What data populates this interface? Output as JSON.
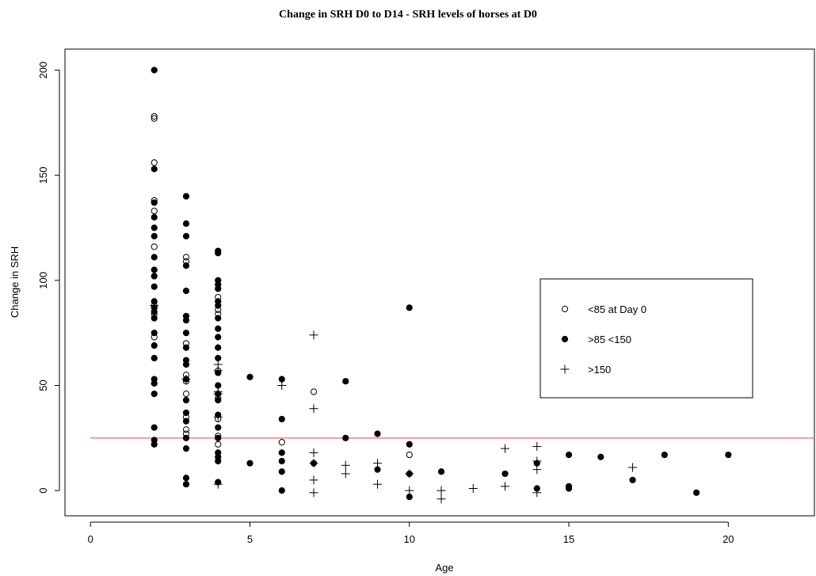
{
  "chart_data": {
    "type": "scatter",
    "title": "Change in SRH D0 to D14 - SRH levels of horses at D0",
    "xlabel": "Age",
    "ylabel": "Change in SRH",
    "xlim": [
      -0.8,
      22.7
    ],
    "ylim": [
      -12,
      210
    ],
    "xticks": [
      0,
      5,
      10,
      15,
      20
    ],
    "yticks": [
      0,
      50,
      100,
      150,
      200
    ],
    "grid": false,
    "legend_position": "right",
    "reference_line": {
      "y": 25,
      "color": "#f08080"
    },
    "series": [
      {
        "name": "<85 at Day 0",
        "marker": "open-circle",
        "points": [
          [
            2,
            178
          ],
          [
            2,
            177
          ],
          [
            2,
            156
          ],
          [
            2,
            138
          ],
          [
            2,
            133
          ],
          [
            2,
            116
          ],
          [
            2,
            88
          ],
          [
            2,
            84
          ],
          [
            2,
            73
          ],
          [
            3,
            111
          ],
          [
            3,
            109
          ],
          [
            3,
            70
          ],
          [
            3,
            55
          ],
          [
            3,
            52
          ],
          [
            3,
            46
          ],
          [
            3,
            35
          ],
          [
            3,
            29
          ],
          [
            3,
            27
          ],
          [
            4,
            92
          ],
          [
            4,
            86
          ],
          [
            4,
            84
          ],
          [
            4,
            57
          ],
          [
            4,
            44
          ],
          [
            4,
            34
          ],
          [
            4,
            26
          ],
          [
            4,
            22
          ],
          [
            6,
            23
          ],
          [
            7,
            47
          ],
          [
            10,
            17
          ]
        ]
      },
      {
        "name": ">85 <150",
        "marker": "filled-circle",
        "points": [
          [
            2,
            200
          ],
          [
            2,
            153
          ],
          [
            2,
            137
          ],
          [
            2,
            130
          ],
          [
            2,
            125
          ],
          [
            2,
            121
          ],
          [
            2,
            111
          ],
          [
            2,
            105
          ],
          [
            2,
            102
          ],
          [
            2,
            97
          ],
          [
            2,
            90
          ],
          [
            2,
            87
          ],
          [
            2,
            85
          ],
          [
            2,
            82
          ],
          [
            2,
            75
          ],
          [
            2,
            69
          ],
          [
            2,
            63
          ],
          [
            2,
            53
          ],
          [
            2,
            51
          ],
          [
            2,
            46
          ],
          [
            2,
            30
          ],
          [
            2,
            24
          ],
          [
            2,
            22
          ],
          [
            3,
            140
          ],
          [
            3,
            127
          ],
          [
            3,
            121
          ],
          [
            3,
            107
          ],
          [
            3,
            95
          ],
          [
            3,
            83
          ],
          [
            3,
            81
          ],
          [
            3,
            75
          ],
          [
            3,
            68
          ],
          [
            3,
            62
          ],
          [
            3,
            60
          ],
          [
            3,
            53
          ],
          [
            3,
            43
          ],
          [
            3,
            37
          ],
          [
            3,
            33
          ],
          [
            3,
            25
          ],
          [
            3,
            20
          ],
          [
            3,
            6
          ],
          [
            3,
            3
          ],
          [
            4,
            114
          ],
          [
            4,
            113
          ],
          [
            4,
            100
          ],
          [
            4,
            98
          ],
          [
            4,
            96
          ],
          [
            4,
            90
          ],
          [
            4,
            88
          ],
          [
            4,
            82
          ],
          [
            4,
            77
          ],
          [
            4,
            73
          ],
          [
            4,
            68
          ],
          [
            4,
            63
          ],
          [
            4,
            56
          ],
          [
            4,
            50
          ],
          [
            4,
            46
          ],
          [
            4,
            43
          ],
          [
            4,
            36
          ],
          [
            4,
            30
          ],
          [
            4,
            25
          ],
          [
            4,
            18
          ],
          [
            4,
            16
          ],
          [
            4,
            14
          ],
          [
            4,
            4
          ],
          [
            5,
            54
          ],
          [
            5,
            13
          ],
          [
            6,
            53
          ],
          [
            6,
            34
          ],
          [
            6,
            18
          ],
          [
            6,
            14
          ],
          [
            6,
            9
          ],
          [
            6,
            0
          ],
          [
            7,
            13
          ],
          [
            8,
            52
          ],
          [
            8,
            25
          ],
          [
            9,
            27
          ],
          [
            9,
            10
          ],
          [
            10,
            87
          ],
          [
            10,
            22
          ],
          [
            10,
            8
          ],
          [
            10,
            -3
          ],
          [
            11,
            9
          ],
          [
            13,
            8
          ],
          [
            14,
            13
          ],
          [
            14,
            1
          ],
          [
            15,
            17
          ],
          [
            15,
            2
          ],
          [
            15,
            1
          ],
          [
            16,
            16
          ],
          [
            17,
            5
          ],
          [
            18,
            17
          ],
          [
            19,
            -1
          ],
          [
            20,
            17
          ]
        ]
      },
      {
        "name": ">150",
        "marker": "plus",
        "points": [
          [
            2,
            88
          ],
          [
            3,
            53
          ],
          [
            4,
            60
          ],
          [
            4,
            57
          ],
          [
            4,
            47
          ],
          [
            4,
            46
          ],
          [
            4,
            35
          ],
          [
            4,
            3
          ],
          [
            6,
            50
          ],
          [
            7,
            74
          ],
          [
            7,
            39
          ],
          [
            7,
            18
          ],
          [
            7,
            13
          ],
          [
            7,
            5
          ],
          [
            7,
            -1
          ],
          [
            8,
            12
          ],
          [
            8,
            8
          ],
          [
            9,
            13
          ],
          [
            9,
            3
          ],
          [
            10,
            8
          ],
          [
            10,
            0
          ],
          [
            11,
            0
          ],
          [
            11,
            -4
          ],
          [
            12,
            1
          ],
          [
            13,
            20
          ],
          [
            13,
            2
          ],
          [
            14,
            21
          ],
          [
            14,
            14
          ],
          [
            14,
            10
          ],
          [
            14,
            -1
          ],
          [
            17,
            11
          ]
        ]
      }
    ]
  }
}
